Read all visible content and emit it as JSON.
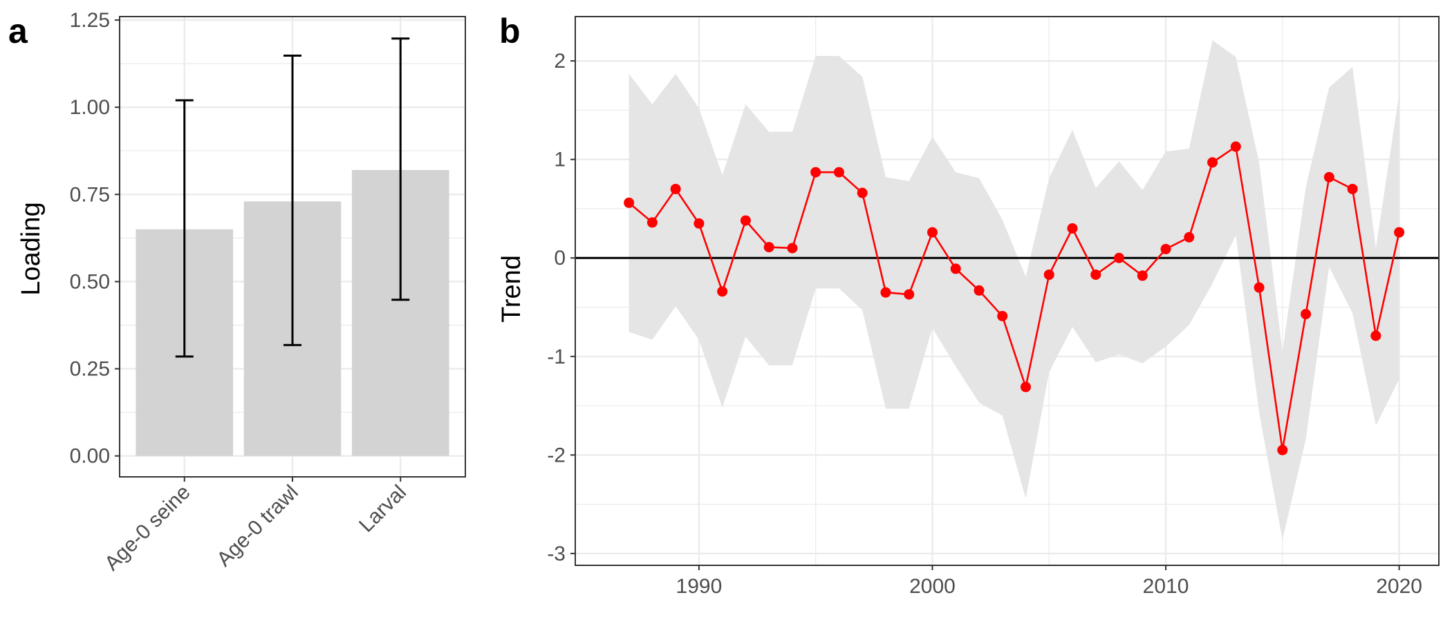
{
  "chart_data": [
    {
      "panel": "a",
      "type": "bar",
      "categories": [
        "Age-0 seine",
        "Age-0 trawl",
        "Larval"
      ],
      "values": [
        0.65,
        0.73,
        0.82
      ],
      "error_lower": [
        0.285,
        0.318,
        0.448
      ],
      "error_upper": [
        1.02,
        1.148,
        1.197
      ],
      "ylabel": "Loading",
      "xlabel": "",
      "ylim": [
        -0.06,
        1.26
      ],
      "yticks": [
        0.0,
        0.25,
        0.5,
        0.75,
        1.0,
        1.25
      ],
      "ytick_labels": [
        "0.00",
        "0.25",
        "0.50",
        "0.75",
        "1.00",
        "1.25"
      ],
      "grid": true,
      "colors": {
        "bar": "#d3d3d3",
        "error": "#000000",
        "grid": "#ebebeb",
        "panel_border": "#333333"
      }
    },
    {
      "panel": "b",
      "type": "line",
      "ylabel": "Trend",
      "xlabel": "",
      "xlim": [
        1984.7,
        2021.7
      ],
      "ylim": [
        -3.12,
        2.45
      ],
      "xticks": [
        1990,
        2000,
        2010,
        2020
      ],
      "yticks": [
        -3,
        -2,
        -1,
        0,
        1,
        2
      ],
      "reference_line": 0,
      "grid": true,
      "x": [
        1987,
        1988,
        1989,
        1990,
        1991,
        1992,
        1993,
        1994,
        1995,
        1996,
        1997,
        1998,
        1999,
        2000,
        2001,
        2002,
        2003,
        2004,
        2005,
        2006,
        2007,
        2008,
        2009,
        2010,
        2011,
        2012,
        2013,
        2014,
        2015,
        2016,
        2017,
        2018,
        2019,
        2020
      ],
      "series": [
        {
          "values": [
            0.56,
            0.36,
            0.7,
            0.35,
            -0.34,
            0.38,
            0.11,
            0.1,
            0.87,
            0.87,
            0.66,
            -0.35,
            -0.37,
            0.26,
            -0.11,
            -0.33,
            -0.59,
            -1.31,
            -0.17,
            0.3,
            -0.17,
            0.0,
            -0.18,
            0.09,
            0.21,
            0.97,
            1.13,
            -0.3,
            -1.95,
            -0.57,
            0.82,
            0.7,
            -0.79,
            0.26
          ]
        }
      ],
      "ribbon_upper": [
        1.87,
        1.56,
        1.87,
        1.52,
        0.84,
        1.56,
        1.28,
        1.28,
        2.05,
        2.05,
        1.84,
        0.82,
        0.78,
        1.23,
        0.87,
        0.81,
        0.39,
        -0.19,
        0.81,
        1.3,
        0.71,
        0.98,
        0.69,
        1.08,
        1.11,
        2.21,
        2.04,
        0.97,
        -0.95,
        0.72,
        1.73,
        1.94,
        0.1,
        1.67
      ],
      "ribbon_lower": [
        -0.75,
        -0.83,
        -0.49,
        -0.83,
        -1.52,
        -0.8,
        -1.09,
        -1.09,
        -0.31,
        -0.31,
        -0.53,
        -1.53,
        -1.53,
        -0.71,
        -1.1,
        -1.47,
        -1.6,
        -2.44,
        -1.16,
        -0.7,
        -1.06,
        -0.98,
        -1.07,
        -0.9,
        -0.68,
        -0.26,
        0.23,
        -1.57,
        -2.86,
        -1.84,
        -0.09,
        -0.56,
        -1.7,
        -1.23
      ],
      "colors": {
        "line": "#ff0000",
        "point": "#ff0000",
        "ribbon": "#e5e5e5",
        "reference": "#000000",
        "grid": "#ebebeb",
        "panel_border": "#333333"
      }
    }
  ]
}
